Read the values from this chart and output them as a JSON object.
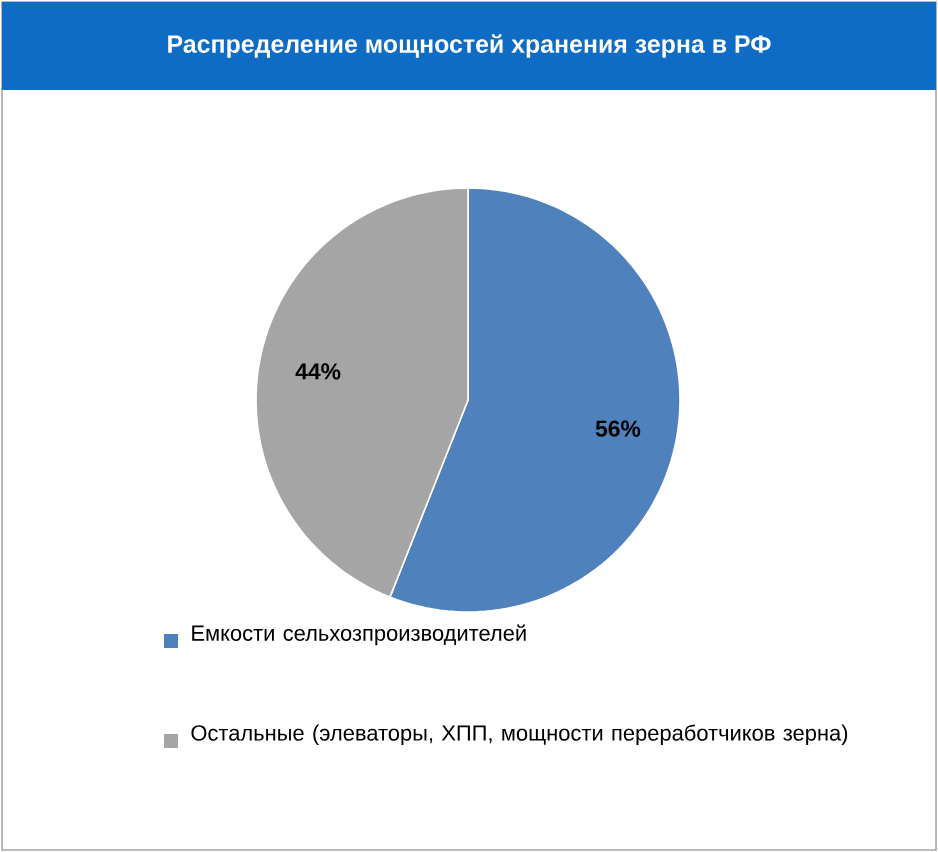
{
  "chart_data": {
    "type": "pie",
    "title": "Распределение мощностей  хранения зерна в РФ",
    "categories": [
      "Емкости сельхозпроизводителей",
      "Остальные (элеваторы, ХПП, мощности переработчиков зерна)"
    ],
    "values": [
      56,
      44
    ],
    "colors": [
      "#4f81bd",
      "#a5a5a5"
    ],
    "value_labels": [
      "56%",
      "44%"
    ],
    "legend": "bottom"
  }
}
